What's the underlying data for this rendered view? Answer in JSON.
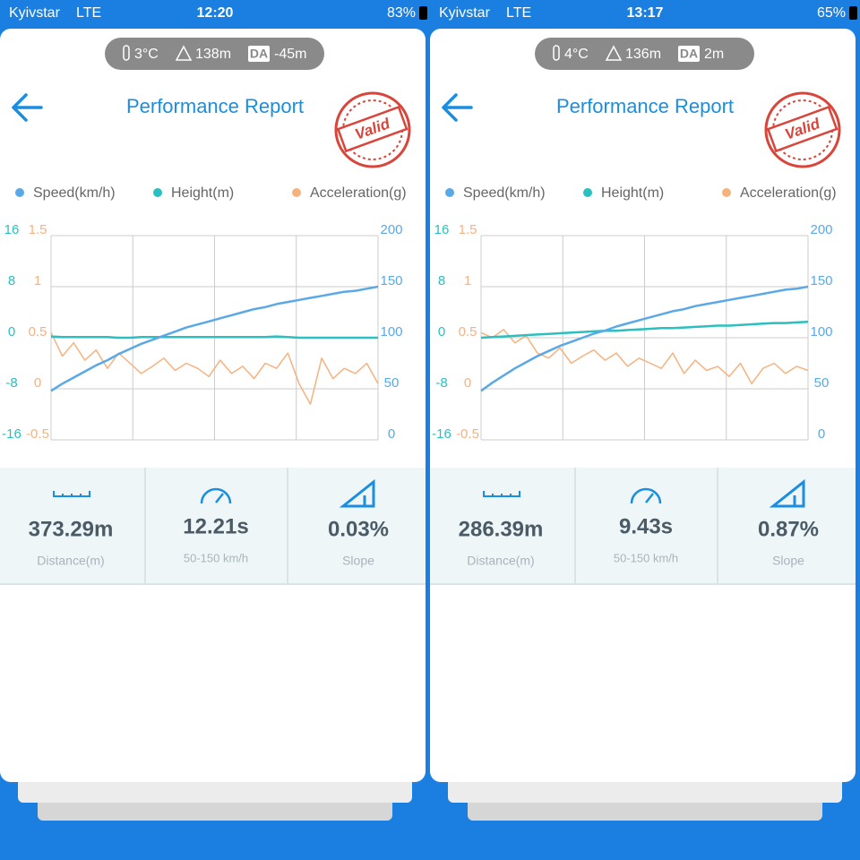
{
  "screens": [
    {
      "status": {
        "carrier": "Kyivstar",
        "network": "LTE",
        "time": "12:20",
        "battery": "83%"
      },
      "conditions": {
        "temperature": "3°C",
        "altitude": "138m",
        "da_label": "DA",
        "da": "-45m"
      },
      "title": "Performance Report",
      "stamp": "Valid",
      "chart": {
        "axes": {
          "height": {
            "color": "#2bbfbf",
            "lim": [
              -16,
              16
            ],
            "ticks": [
              -16,
              -8,
              0,
              8,
              16
            ]
          },
          "acceleration": {
            "color": "#f5b27f",
            "lim": [
              -0.5,
              1.5
            ],
            "ticks": [
              -0.5,
              0,
              0.5,
              1,
              1.5
            ]
          },
          "speed": {
            "color": "#5aa9e6",
            "lim": [
              0,
              200
            ],
            "ticks": [
              0,
              50,
              100,
              150,
              200
            ]
          }
        },
        "series": [
          {
            "name": "Speed(km/h)",
            "color": "#5aa9e6",
            "axis": "speed",
            "values": [
              48,
              55,
              61,
              67,
              73,
              78,
              84,
              89,
              94,
              98,
              102,
              106,
              110,
              113,
              116,
              119,
              122,
              125,
              128,
              130,
              133,
              135,
              137,
              139,
              141,
              143,
              145,
              146,
              148,
              150
            ]
          },
          {
            "name": "Height(m)",
            "color": "#2bbfbf",
            "axis": "height",
            "values": [
              0.2,
              0.1,
              0.1,
              0.1,
              0.1,
              0.1,
              0,
              0,
              0.1,
              0.1,
              0.1,
              0.1,
              0.1,
              0.1,
              0.1,
              0.1,
              0.1,
              0.1,
              0.1,
              0.1,
              0.2,
              0.1,
              0,
              0,
              0,
              0,
              0,
              0,
              0,
              0
            ]
          },
          {
            "name": "Acceleration(g)",
            "color": "#f5b27f",
            "axis": "acceleration",
            "values": [
              0.55,
              0.32,
              0.45,
              0.28,
              0.38,
              0.2,
              0.35,
              0.25,
              0.15,
              0.22,
              0.3,
              0.18,
              0.25,
              0.2,
              0.12,
              0.28,
              0.15,
              0.22,
              0.1,
              0.25,
              0.2,
              0.35,
              0.05,
              -0.15,
              0.3,
              0.1,
              0.2,
              0.15,
              0.25,
              0.05
            ]
          }
        ]
      },
      "stats": [
        {
          "value": "373.29m",
          "label": "Distance(m)"
        },
        {
          "value": "12.21s",
          "label": "50-150 km/h"
        },
        {
          "value": "0.03%",
          "label": "Slope"
        }
      ]
    },
    {
      "status": {
        "carrier": "Kyivstar",
        "network": "LTE",
        "time": "13:17",
        "battery": "65%"
      },
      "conditions": {
        "temperature": "4°C",
        "altitude": "136m",
        "da_label": "DA",
        "da": "2m"
      },
      "title": "Performance Report",
      "stamp": "Valid",
      "chart": {
        "axes": {
          "height": {
            "color": "#2bbfbf",
            "lim": [
              -16,
              16
            ],
            "ticks": [
              -16,
              -8,
              0,
              8,
              16
            ]
          },
          "acceleration": {
            "color": "#f5b27f",
            "lim": [
              -0.5,
              1.5
            ],
            "ticks": [
              -0.5,
              0,
              0.5,
              1,
              1.5
            ]
          },
          "speed": {
            "color": "#5aa9e6",
            "lim": [
              0,
              200
            ],
            "ticks": [
              0,
              50,
              100,
              150,
              200
            ]
          }
        },
        "series": [
          {
            "name": "Speed(km/h)",
            "color": "#5aa9e6",
            "axis": "speed",
            "values": [
              48,
              56,
              63,
              70,
              76,
              82,
              87,
              92,
              96,
              100,
              104,
              107,
              111,
              114,
              117,
              120,
              123,
              126,
              128,
              131,
              133,
              135,
              137,
              139,
              141,
              143,
              145,
              147,
              148,
              150
            ]
          },
          {
            "name": "Height(m)",
            "color": "#2bbfbf",
            "axis": "height",
            "values": [
              0,
              0.1,
              0.2,
              0.3,
              0.4,
              0.5,
              0.6,
              0.7,
              0.8,
              0.9,
              1,
              1.1,
              1.1,
              1.2,
              1.3,
              1.4,
              1.5,
              1.5,
              1.6,
              1.7,
              1.8,
              1.9,
              1.9,
              2,
              2.1,
              2.2,
              2.3,
              2.3,
              2.4,
              2.5
            ]
          },
          {
            "name": "Acceleration(g)",
            "color": "#f5b27f",
            "axis": "acceleration",
            "values": [
              0.55,
              0.5,
              0.58,
              0.45,
              0.52,
              0.35,
              0.3,
              0.4,
              0.25,
              0.32,
              0.38,
              0.28,
              0.35,
              0.22,
              0.3,
              0.25,
              0.2,
              0.35,
              0.15,
              0.28,
              0.18,
              0.22,
              0.12,
              0.25,
              0.05,
              0.2,
              0.25,
              0.15,
              0.22,
              0.18
            ]
          }
        ]
      },
      "stats": [
        {
          "value": "286.39m",
          "label": "Distance(m)"
        },
        {
          "value": "9.43s",
          "label": "50-150 km/h"
        },
        {
          "value": "0.87%",
          "label": "Slope"
        }
      ]
    }
  ]
}
